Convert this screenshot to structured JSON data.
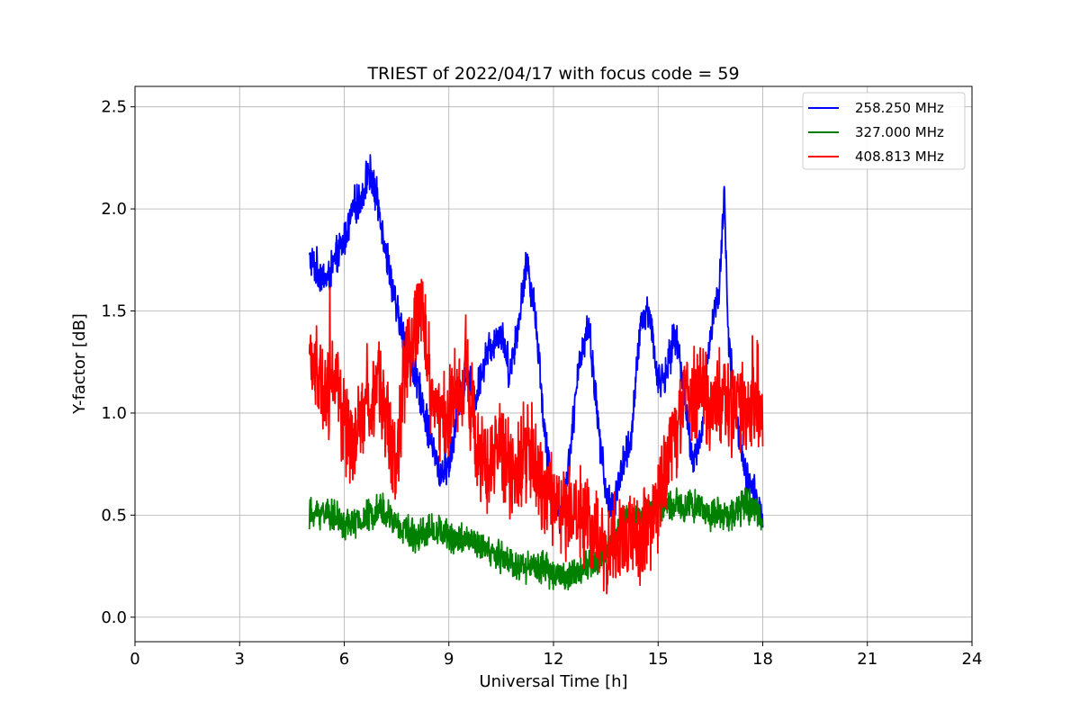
{
  "chart_data": {
    "type": "line",
    "title": "TRIEST of 2022/04/17 with focus code = 59",
    "xlabel": "Universal Time [h]",
    "ylabel": "Y-factor [dB]",
    "xlim": [
      0,
      24
    ],
    "ylim": [
      -0.12,
      2.6
    ],
    "xticks": [
      0,
      3,
      6,
      9,
      12,
      15,
      18,
      21,
      24
    ],
    "yticks": [
      0.0,
      0.5,
      1.0,
      1.5,
      2.0,
      2.5
    ],
    "ytick_labels": [
      "0.0",
      "0.5",
      "1.0",
      "1.5",
      "2.0",
      "2.5"
    ],
    "grid": true,
    "legend_position": "top-right",
    "series": [
      {
        "name": "258.250 MHz",
        "color": "#0000ff",
        "x": [
          5.0,
          5.25,
          5.5,
          5.75,
          6.0,
          6.25,
          6.5,
          6.7,
          7.0,
          7.25,
          7.5,
          7.75,
          8.0,
          8.25,
          8.5,
          8.75,
          9.0,
          9.25,
          9.5,
          9.75,
          10.0,
          10.25,
          10.5,
          10.75,
          11.0,
          11.25,
          11.5,
          11.75,
          12.0,
          12.25,
          12.5,
          12.75,
          13.0,
          13.25,
          13.5,
          13.75,
          14.0,
          14.25,
          14.5,
          14.75,
          15.0,
          15.25,
          15.5,
          15.75,
          16.0,
          16.25,
          16.5,
          16.75,
          16.9,
          17.0,
          17.25,
          17.5,
          17.75,
          18.0
        ],
        "y": [
          1.75,
          1.7,
          1.65,
          1.75,
          1.85,
          2.0,
          2.05,
          2.2,
          2.0,
          1.75,
          1.5,
          1.35,
          1.2,
          1.05,
          0.85,
          0.7,
          0.75,
          1.0,
          1.2,
          1.05,
          1.25,
          1.35,
          1.4,
          1.2,
          1.45,
          1.75,
          1.45,
          0.9,
          0.55,
          0.5,
          0.85,
          1.25,
          1.45,
          1.0,
          0.6,
          0.55,
          0.75,
          0.9,
          1.45,
          1.5,
          1.15,
          1.2,
          1.4,
          1.1,
          0.75,
          0.9,
          1.4,
          1.6,
          2.1,
          1.4,
          0.95,
          0.7,
          0.6,
          0.5
        ],
        "noise": 0.07
      },
      {
        "name": "327.000 MHz",
        "color": "#008000",
        "x": [
          5.0,
          5.5,
          6.0,
          6.5,
          7.0,
          7.5,
          8.0,
          8.5,
          9.0,
          9.5,
          10.0,
          10.5,
          11.0,
          11.5,
          12.0,
          12.5,
          13.0,
          13.5,
          14.0,
          14.5,
          15.0,
          15.5,
          16.0,
          16.5,
          17.0,
          17.5,
          18.0
        ],
        "y": [
          0.5,
          0.52,
          0.45,
          0.47,
          0.55,
          0.45,
          0.4,
          0.43,
          0.4,
          0.38,
          0.33,
          0.3,
          0.25,
          0.25,
          0.22,
          0.2,
          0.25,
          0.32,
          0.45,
          0.5,
          0.55,
          0.55,
          0.55,
          0.5,
          0.5,
          0.55,
          0.5
        ],
        "noise": 0.06
      },
      {
        "name": "408.813 MHz",
        "color": "#ff0000",
        "x": [
          5.0,
          5.25,
          5.5,
          5.75,
          6.0,
          6.25,
          6.5,
          6.75,
          7.0,
          7.25,
          7.5,
          7.75,
          8.0,
          8.25,
          8.5,
          8.75,
          9.0,
          9.25,
          9.5,
          9.75,
          10.0,
          10.25,
          10.5,
          10.75,
          11.0,
          11.25,
          11.5,
          11.75,
          12.0,
          12.25,
          12.5,
          12.75,
          13.0,
          13.25,
          13.5,
          13.75,
          14.0,
          14.25,
          14.5,
          14.75,
          15.0,
          15.25,
          15.5,
          15.75,
          16.0,
          16.25,
          16.5,
          16.75,
          17.0,
          17.25,
          17.5,
          17.75,
          18.0
        ],
        "y": [
          1.3,
          1.15,
          1.1,
          1.2,
          0.9,
          0.8,
          1.05,
          1.0,
          1.15,
          0.95,
          0.75,
          1.2,
          1.4,
          1.5,
          1.1,
          0.95,
          1.0,
          1.1,
          1.2,
          0.9,
          0.75,
          0.8,
          0.85,
          0.75,
          0.7,
          0.85,
          0.75,
          0.55,
          0.6,
          0.5,
          0.55,
          0.5,
          0.45,
          0.4,
          0.35,
          0.4,
          0.35,
          0.4,
          0.35,
          0.45,
          0.55,
          0.8,
          0.9,
          1.1,
          1.05,
          1.15,
          1.0,
          1.1,
          1.05,
          1.05,
          1.0,
          1.05,
          1.0
        ],
        "noise": 0.17
      }
    ]
  }
}
